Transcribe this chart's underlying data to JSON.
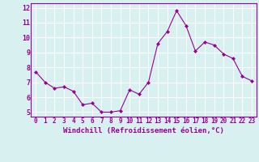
{
  "x": [
    0,
    1,
    2,
    3,
    4,
    5,
    6,
    7,
    8,
    9,
    10,
    11,
    12,
    13,
    14,
    15,
    16,
    17,
    18,
    19,
    20,
    21,
    22,
    23
  ],
  "y": [
    7.7,
    7.0,
    6.6,
    6.7,
    6.4,
    5.5,
    5.6,
    5.0,
    5.0,
    5.1,
    6.5,
    6.2,
    7.0,
    9.6,
    10.4,
    11.8,
    10.8,
    9.1,
    9.7,
    9.5,
    8.9,
    8.6,
    7.4,
    7.1
  ],
  "line_color": "#990099",
  "marker": "D",
  "marker_size": 2.0,
  "linewidth": 0.8,
  "xlabel": "Windchill (Refroidissement éolien,°C)",
  "xlabel_fontsize": 6.5,
  "ylabel_ticks": [
    5,
    6,
    7,
    8,
    9,
    10,
    11,
    12
  ],
  "xtick_labels": [
    "0",
    "1",
    "2",
    "3",
    "4",
    "5",
    "6",
    "7",
    "8",
    "9",
    "10",
    "11",
    "12",
    "13",
    "14",
    "15",
    "16",
    "17",
    "18",
    "19",
    "20",
    "21",
    "22",
    "23"
  ],
  "xlim": [
    -0.5,
    23.5
  ],
  "ylim": [
    4.7,
    12.3
  ],
  "bg_color": "#d8f0f0",
  "grid_color": "#b8dede",
  "tick_color": "#990099",
  "label_color": "#990099",
  "tick_fontsize": 5.5,
  "spine_color": "#990099"
}
